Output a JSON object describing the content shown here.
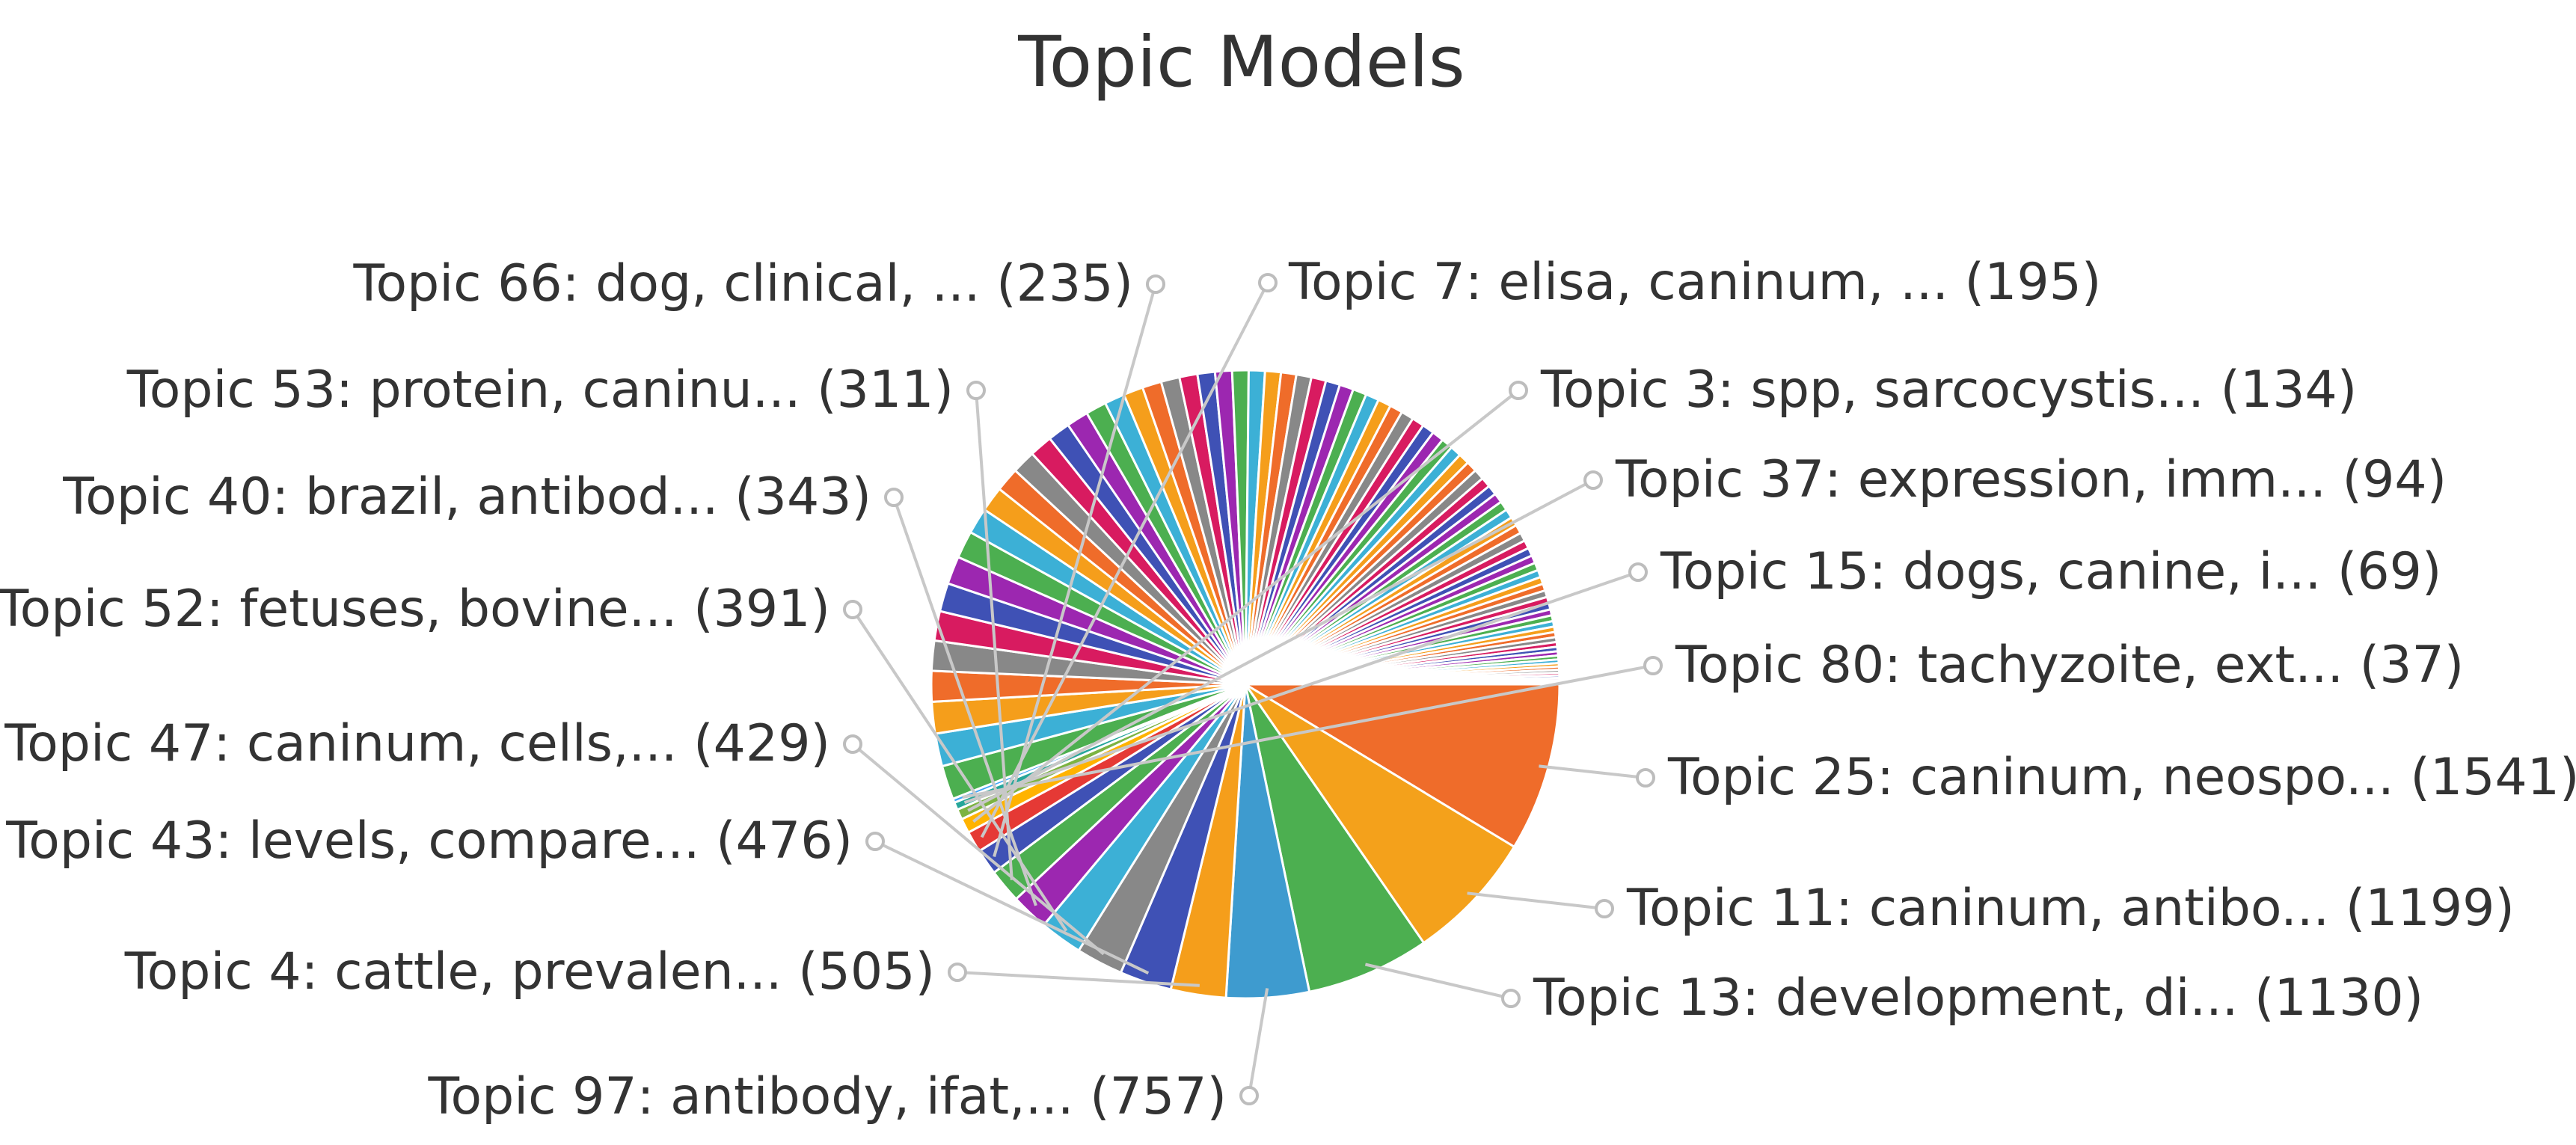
{
  "chart_data": {
    "type": "pie",
    "title": "Topic Models",
    "start_angle_deg": 90,
    "direction": "counterclockwise",
    "labeled_slices": [
      {
        "label": "Topic 25: caninum, neospo... (1541)",
        "value": 1541,
        "color": "#ef6c2a"
      },
      {
        "label": "Topic 11: caninum, antibo... (1199)",
        "value": 1199,
        "color": "#f4a11b"
      },
      {
        "label": "Topic 13: development, di... (1130)",
        "value": 1130,
        "color": "#4caf50"
      },
      {
        "label": "Topic 97: antibody, ifat,... (757)",
        "value": 757,
        "color": "#3e9bcf"
      },
      {
        "label": "Topic 4: cattle, prevalen... (505)",
        "value": 505,
        "color": "#f59e1b"
      },
      {
        "label": "Topic 43: levels, compare... (476)",
        "value": 476,
        "color": "#3f51b5"
      },
      {
        "label": "Topic 47: caninum, cells,... (429)",
        "value": 429,
        "color": "#888888"
      },
      {
        "label": "Topic 52: fetuses, bovine... (391)",
        "value": 391,
        "color": "#3cb0d6"
      },
      {
        "label": "Topic 40: brazil, antibod... (343)",
        "value": 343,
        "color": "#9c27b0"
      },
      {
        "label": "Topic 53: protein, caninu... (311)",
        "value": 311,
        "color": "#4caf50"
      },
      {
        "label": "Topic 66: dog, clinical, ... (235)",
        "value": 235,
        "color": "#3f51b5"
      },
      {
        "label": "Topic 7: elisa, caninum, ... (195)",
        "value": 195,
        "color": "#e53935"
      },
      {
        "label": "Topic 3: spp, sarcocystis... (134)",
        "value": 134,
        "color": "#ffb300"
      },
      {
        "label": "Topic 37: expression, imm... (94)",
        "value": 94,
        "color": "#7cb342"
      },
      {
        "label": "Topic 15: dogs, canine, i... (69)",
        "value": 69,
        "color": "#26a69a"
      },
      {
        "label": "Topic 80: tachyzoite, ext... (37)",
        "value": 37,
        "color": "#42a5f5"
      }
    ],
    "palette": [
      "#4caf50",
      "#3cb0d6",
      "#f59e1b",
      "#ef6c2a",
      "#888888",
      "#d81b60",
      "#3f51b5",
      "#9c27b0"
    ],
    "unlabeled_fill_values": [
      310,
      300,
      290,
      280,
      275,
      270,
      260,
      255,
      250,
      240,
      230,
      220,
      215,
      210,
      205,
      200,
      190,
      185,
      180,
      175,
      170,
      165,
      160,
      155,
      150,
      148,
      145,
      140,
      138,
      135,
      130,
      128,
      125,
      122,
      120,
      118,
      115,
      112,
      110,
      108,
      105,
      102,
      100,
      98,
      96,
      92,
      90,
      88,
      86,
      84,
      82,
      80,
      78,
      76,
      74,
      72,
      70,
      67,
      65,
      63,
      61,
      59,
      57,
      55,
      53,
      51,
      49,
      47,
      45,
      43,
      41,
      39,
      35,
      33,
      31,
      29,
      27,
      25,
      23,
      21,
      19,
      17
    ]
  }
}
